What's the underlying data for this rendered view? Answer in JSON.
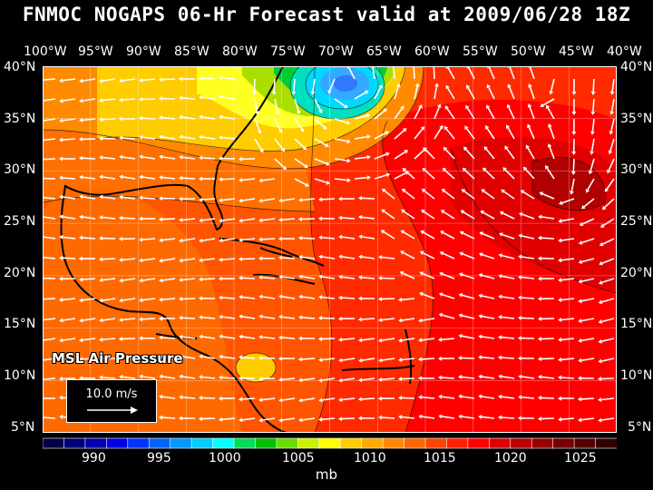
{
  "title": "FNMOC NOGAPS 06-Hr Forecast valid at 2009/06/28 18Z",
  "longitude_labels": [
    "100°W",
    "95°W",
    "90°W",
    "85°W",
    "80°W",
    "75°W",
    "70°W",
    "65°W",
    "60°W",
    "55°W",
    "50°W",
    "45°W",
    "40°W"
  ],
  "latitude_labels": [
    "40°N",
    "35°N",
    "30°N",
    "25°N",
    "20°N",
    "15°N",
    "10°N",
    "5°N"
  ],
  "field_label": "MSL Air Pressure",
  "reference_vector": {
    "label": "10.0 m/s",
    "arrow_icon": "arrow-right-icon"
  },
  "colorbar": {
    "units": "mb",
    "tick_labels": [
      "990",
      "995",
      "1000",
      "1005",
      "1010",
      "1015",
      "1020",
      "1025"
    ],
    "colors": [
      "#000044",
      "#00007a",
      "#0000b0",
      "#0000e4",
      "#0033ff",
      "#0066ff",
      "#0099ff",
      "#00ccff",
      "#00ffff",
      "#00dd55",
      "#00c000",
      "#66dd00",
      "#ccee00",
      "#ffff00",
      "#ffcc00",
      "#ffaa00",
      "#ff8800",
      "#ff6600",
      "#ff4400",
      "#ff2200",
      "#ff0000",
      "#dd0000",
      "#bb0000",
      "#990000",
      "#770000",
      "#550000",
      "#330000"
    ]
  },
  "map_colors": {
    "ocean_base": "#ff3300",
    "land_outline": "#000000",
    "grid": "#ffffff"
  }
}
